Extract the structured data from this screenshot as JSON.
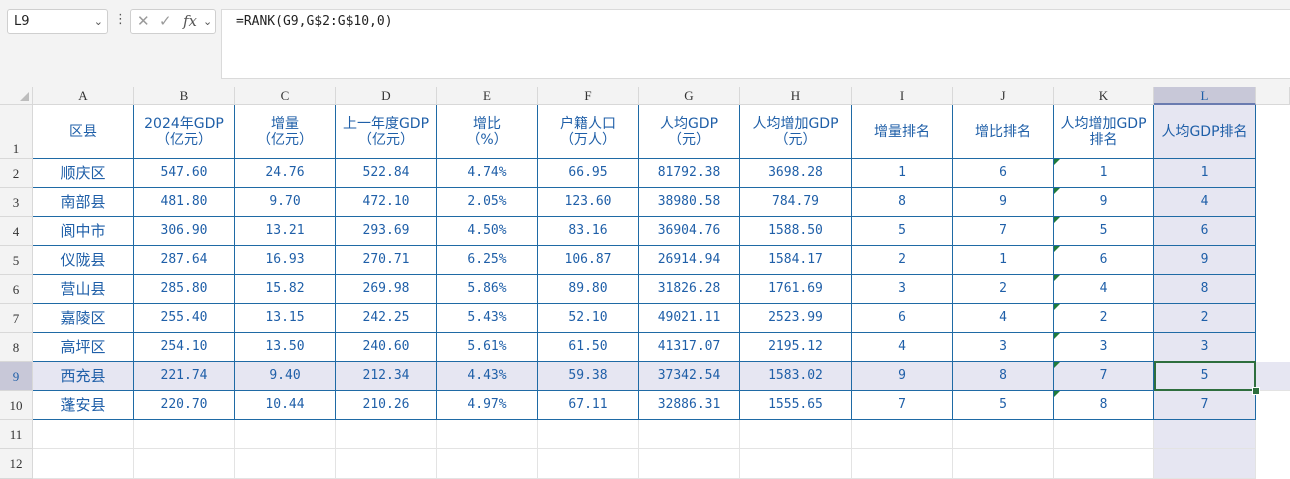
{
  "name_box": "L9",
  "formula": "=RANK(G9,G$2:G$10,0)",
  "icons": {
    "cancel": "close-icon",
    "confirm": "check-icon",
    "fx": "fx-icon"
  },
  "columns": [
    "A",
    "B",
    "C",
    "D",
    "E",
    "F",
    "G",
    "H",
    "I",
    "J",
    "K",
    "L"
  ],
  "rows": [
    "1",
    "2",
    "3",
    "4",
    "5",
    "6",
    "7",
    "8",
    "9",
    "10",
    "11",
    "12"
  ],
  "selected_column": "L",
  "selected_row": "9",
  "headers": [
    "区县",
    "2024年GDP\n（亿元）",
    "增量\n（亿元）",
    "上一年度GDP\n（亿元）",
    "增比\n（%）",
    "户籍人口\n（万人）",
    "人均GDP\n（元）",
    "人均增加GDP\n（元）",
    "增量排名",
    "增比排名",
    "人均增加GDP\n排名",
    "人均GDP排名"
  ],
  "data": [
    [
      "顺庆区",
      "547.60",
      "24.76",
      "522.84",
      "4.74%",
      "66.95",
      "81792.38",
      "3698.28",
      "1",
      "6",
      "1",
      "1"
    ],
    [
      "南部县",
      "481.80",
      "9.70",
      "472.10",
      "2.05%",
      "123.60",
      "38980.58",
      "784.79",
      "8",
      "9",
      "9",
      "4"
    ],
    [
      "阆中市",
      "306.90",
      "13.21",
      "293.69",
      "4.50%",
      "83.16",
      "36904.76",
      "1588.50",
      "5",
      "7",
      "5",
      "6"
    ],
    [
      "仪陇县",
      "287.64",
      "16.93",
      "270.71",
      "6.25%",
      "106.87",
      "26914.94",
      "1584.17",
      "2",
      "1",
      "6",
      "9"
    ],
    [
      "营山县",
      "285.80",
      "15.82",
      "269.98",
      "5.86%",
      "89.80",
      "31826.28",
      "1761.69",
      "3",
      "2",
      "4",
      "8"
    ],
    [
      "嘉陵区",
      "255.40",
      "13.15",
      "242.25",
      "5.43%",
      "52.10",
      "49021.11",
      "2523.99",
      "6",
      "4",
      "2",
      "2"
    ],
    [
      "高坪区",
      "254.10",
      "13.50",
      "240.60",
      "5.61%",
      "61.50",
      "41317.07",
      "2195.12",
      "4",
      "3",
      "3",
      "3"
    ],
    [
      "西充县",
      "221.74",
      "9.40",
      "212.34",
      "4.43%",
      "59.38",
      "37342.54",
      "1583.02",
      "9",
      "8",
      "7",
      "5"
    ],
    [
      "蓬安县",
      "220.70",
      "10.44",
      "210.26",
      "4.97%",
      "67.11",
      "32886.31",
      "1555.65",
      "7",
      "5",
      "8",
      "7"
    ]
  ],
  "colors": {
    "grid_border": "#1f6aa5",
    "text": "#1f5fa8",
    "selection_tint": "#e6e6f2",
    "active_border": "#2e6e3e",
    "error_marker": "#1e7a3c"
  }
}
